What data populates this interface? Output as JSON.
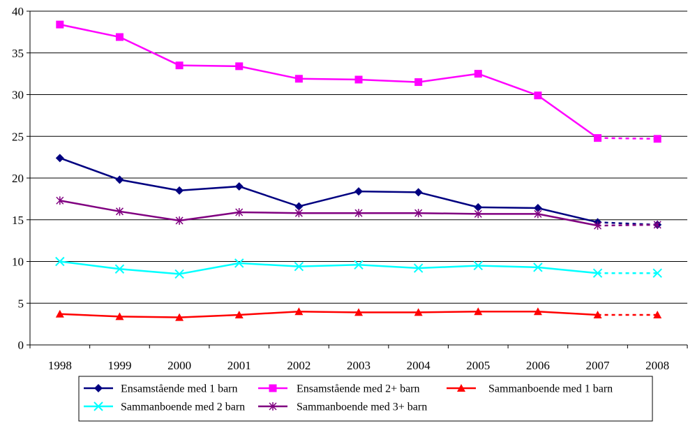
{
  "chart_data": {
    "type": "line",
    "title": "",
    "xlabel": "",
    "ylabel": "",
    "categories": [
      "1998",
      "1999",
      "2000",
      "2001",
      "2002",
      "2003",
      "2004",
      "2005",
      "2006",
      "2007",
      "2008"
    ],
    "ylim": [
      0,
      40
    ],
    "yticks": [
      "0",
      "5",
      "10",
      "15",
      "20",
      "25",
      "30",
      "35",
      "40"
    ],
    "grid": "horizontal",
    "legend_position": "bottom",
    "projection_note_categories": [
      "2007",
      "2008"
    ],
    "series": [
      {
        "name": "Ensamstående med 1 barn",
        "color": "#000080",
        "marker": "diamond",
        "values": [
          22.4,
          19.8,
          18.5,
          19.0,
          16.6,
          18.4,
          18.3,
          16.5,
          16.4,
          14.7,
          14.4
        ]
      },
      {
        "name": "Ensamstående med 2+ barn",
        "color": "#FF00FF",
        "marker": "square",
        "values": [
          38.4,
          36.9,
          33.5,
          33.4,
          31.9,
          31.8,
          31.5,
          32.5,
          29.9,
          24.8,
          24.7
        ]
      },
      {
        "name": "Sammanboende med 1 barn",
        "color": "#FF0000",
        "marker": "triangle",
        "values": [
          3.7,
          3.4,
          3.3,
          3.6,
          4.0,
          3.9,
          3.9,
          4.0,
          4.0,
          3.6,
          3.6
        ]
      },
      {
        "name": "Sammanboende med 2 barn",
        "color": "#00FFFF",
        "marker": "x",
        "values": [
          10.0,
          9.1,
          8.5,
          9.8,
          9.4,
          9.6,
          9.2,
          9.5,
          9.3,
          8.6,
          8.6
        ]
      },
      {
        "name": "Sammanboende med 3+ barn",
        "color": "#800080",
        "marker": "star",
        "values": [
          17.3,
          16.0,
          14.9,
          15.9,
          15.8,
          15.8,
          15.8,
          15.7,
          15.7,
          14.3,
          14.4
        ]
      }
    ]
  }
}
